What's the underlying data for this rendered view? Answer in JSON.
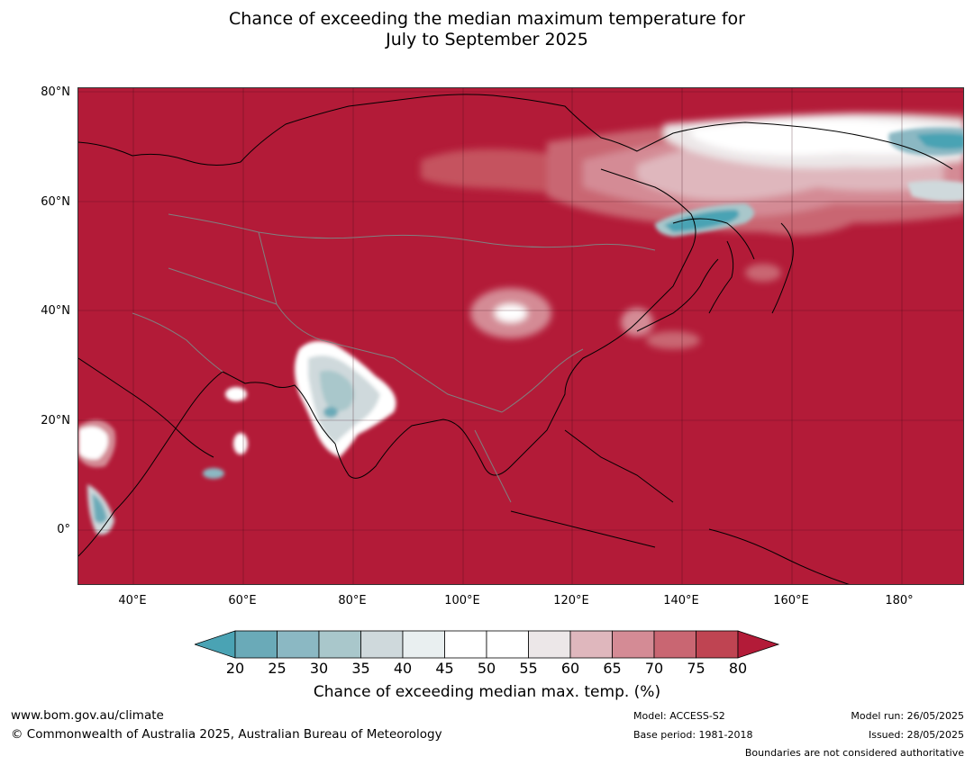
{
  "title": {
    "line1": "Chance of exceeding the median maximum temperature for",
    "line2": "July to September 2025"
  },
  "map": {
    "region": "Asia",
    "lat_labels": [
      "80°N",
      "60°N",
      "40°N",
      "20°N",
      "0°"
    ],
    "lon_labels": [
      "40°E",
      "60°E",
      "80°E",
      "100°E",
      "120°E",
      "140°E",
      "160°E",
      "180°"
    ],
    "lon_range": [
      30,
      191
    ],
    "lat_range": [
      -10,
      80
    ],
    "background_color": "#b31b38",
    "grid": true
  },
  "colorbar": {
    "ticks": [
      "20",
      "25",
      "30",
      "35",
      "40",
      "45",
      "50",
      "55",
      "60",
      "65",
      "70",
      "75",
      "80"
    ],
    "colors": [
      "#4aa3b4",
      "#6aaab8",
      "#8bb8c3",
      "#a9c7cb",
      "#cfd9dc",
      "#e9eff0",
      "#ffffff",
      "#ffffff",
      "#ece7e8",
      "#dfb7bd",
      "#d48b95",
      "#c96672",
      "#bf4452",
      "#b31b38"
    ],
    "label": "Chance of exceeding median max. temp. (%)"
  },
  "footer": {
    "website": "www.bom.gov.au/climate",
    "copyright": "© Commonwealth of Australia 2025, Australian Bureau of Meteorology",
    "model": "Model: ACCESS-S2",
    "base_period": "Base period: 1981-2018",
    "model_run": "Model run: 26/05/2025",
    "issued": "Issued: 28/05/2025",
    "boundaries": "Boundaries are not considered authoritative"
  }
}
